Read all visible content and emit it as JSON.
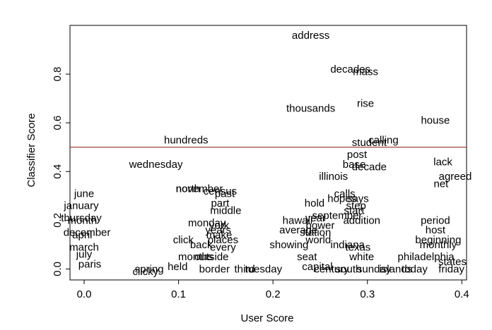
{
  "chart_data": {
    "type": "scatter",
    "title": "",
    "xlabel": "User Score",
    "ylabel": "Classifier Score",
    "xlim": [
      -0.015,
      0.405
    ],
    "ylim": [
      -0.045,
      1.0
    ],
    "xticks": [
      0.0,
      0.1,
      0.2,
      0.3,
      0.4
    ],
    "xtick_labels": [
      "0.0",
      "0.1",
      "0.2",
      "0.3",
      "0.4"
    ],
    "yticks": [
      0.0,
      0.2,
      0.4,
      0.6,
      0.8
    ],
    "ytick_labels": [
      "0.0",
      "0.2",
      "0.4",
      "0.6",
      "0.8"
    ],
    "grid": false,
    "threshold": {
      "y": 0.5,
      "color": "#a0413a"
    },
    "points": [
      {
        "label": "address",
        "x": 0.24,
        "y": 0.96
      },
      {
        "label": "decades",
        "x": 0.282,
        "y": 0.82
      },
      {
        "label": "mass",
        "x": 0.298,
        "y": 0.81
      },
      {
        "label": "rise",
        "x": 0.298,
        "y": 0.68
      },
      {
        "label": "thousands",
        "x": 0.24,
        "y": 0.66
      },
      {
        "label": "house",
        "x": 0.372,
        "y": 0.61
      },
      {
        "label": "hundreds",
        "x": 0.108,
        "y": 0.53
      },
      {
        "label": "calling",
        "x": 0.317,
        "y": 0.53
      },
      {
        "label": "student",
        "x": 0.302,
        "y": 0.52
      },
      {
        "label": "post",
        "x": 0.289,
        "y": 0.47
      },
      {
        "label": "base",
        "x": 0.286,
        "y": 0.43
      },
      {
        "label": "decade",
        "x": 0.302,
        "y": 0.42
      },
      {
        "label": "wednesday",
        "x": 0.076,
        "y": 0.43
      },
      {
        "label": "lack",
        "x": 0.38,
        "y": 0.44
      },
      {
        "label": "agreed",
        "x": 0.393,
        "y": 0.38
      },
      {
        "label": "net",
        "x": 0.378,
        "y": 0.35
      },
      {
        "label": "illinois",
        "x": 0.264,
        "y": 0.38
      },
      {
        "label": "november",
        "x": 0.122,
        "y": 0.33
      },
      {
        "label": "north",
        "x": 0.11,
        "y": 0.33
      },
      {
        "label": "census",
        "x": 0.144,
        "y": 0.32
      },
      {
        "label": "past",
        "x": 0.149,
        "y": 0.31
      },
      {
        "label": "june",
        "x": 0.0,
        "y": 0.31
      },
      {
        "label": "calls",
        "x": 0.276,
        "y": 0.31
      },
      {
        "label": "hopes",
        "x": 0.273,
        "y": 0.29
      },
      {
        "label": "says",
        "x": 0.29,
        "y": 0.29
      },
      {
        "label": "part",
        "x": 0.144,
        "y": 0.27
      },
      {
        "label": "hold",
        "x": 0.244,
        "y": 0.27
      },
      {
        "label": "january",
        "x": -0.003,
        "y": 0.26
      },
      {
        "label": "step",
        "x": 0.288,
        "y": 0.26
      },
      {
        "label": "middle",
        "x": 0.15,
        "y": 0.24
      },
      {
        "label": "start",
        "x": 0.286,
        "y": 0.24
      },
      {
        "label": "september",
        "x": 0.268,
        "y": 0.22
      },
      {
        "label": "year",
        "x": 0.245,
        "y": 0.21
      },
      {
        "label": "hawaii",
        "x": 0.226,
        "y": 0.2
      },
      {
        "label": "thursday",
        "x": -0.003,
        "y": 0.21
      },
      {
        "label": "addition",
        "x": 0.294,
        "y": 0.2
      },
      {
        "label": "month",
        "x": -0.002,
        "y": 0.2
      },
      {
        "label": "period",
        "x": 0.372,
        "y": 0.2
      },
      {
        "label": "monday",
        "x": 0.13,
        "y": 0.19
      },
      {
        "label": "york",
        "x": 0.143,
        "y": 0.18
      },
      {
        "label": "power",
        "x": 0.25,
        "y": 0.18
      },
      {
        "label": "years",
        "x": 0.142,
        "y": 0.16
      },
      {
        "label": "average",
        "x": 0.227,
        "y": 0.16
      },
      {
        "label": "host",
        "x": 0.372,
        "y": 0.16
      },
      {
        "label": "december",
        "x": 0.003,
        "y": 0.15
      },
      {
        "label": "make",
        "x": 0.143,
        "y": 0.14
      },
      {
        "label": "station",
        "x": 0.245,
        "y": 0.15
      },
      {
        "label": "april",
        "x": -0.002,
        "y": 0.14
      },
      {
        "label": "places",
        "x": 0.147,
        "y": 0.12
      },
      {
        "label": "click",
        "x": 0.105,
        "y": 0.12
      },
      {
        "label": "world",
        "x": 0.248,
        "y": 0.12
      },
      {
        "label": "beginning",
        "x": 0.375,
        "y": 0.12
      },
      {
        "label": "showing",
        "x": 0.217,
        "y": 0.1
      },
      {
        "label": "back",
        "x": 0.124,
        "y": 0.1
      },
      {
        "label": "every",
        "x": 0.147,
        "y": 0.09
      },
      {
        "label": "march",
        "x": 0.0,
        "y": 0.09
      },
      {
        "label": "indiana",
        "x": 0.279,
        "y": 0.1
      },
      {
        "label": "texas",
        "x": 0.29,
        "y": 0.09
      },
      {
        "label": "monthly",
        "x": 0.375,
        "y": 0.1
      },
      {
        "label": "months",
        "x": 0.118,
        "y": 0.05
      },
      {
        "label": "outside",
        "x": 0.135,
        "y": 0.05
      },
      {
        "label": "seat",
        "x": 0.236,
        "y": 0.05
      },
      {
        "label": "white",
        "x": 0.294,
        "y": 0.05
      },
      {
        "label": "philadelphia",
        "x": 0.362,
        "y": 0.05
      },
      {
        "label": "states",
        "x": 0.39,
        "y": 0.03
      },
      {
        "label": "july",
        "x": 0.0,
        "y": 0.06
      },
      {
        "label": "paris",
        "x": 0.006,
        "y": 0.02
      },
      {
        "label": "spring",
        "x": 0.069,
        "y": 0.0
      },
      {
        "label": "clicky",
        "x": 0.065,
        "y": -0.01
      },
      {
        "label": "held",
        "x": 0.099,
        "y": 0.01
      },
      {
        "label": "border",
        "x": 0.138,
        "y": 0.0
      },
      {
        "label": "third",
        "x": 0.17,
        "y": 0.0
      },
      {
        "label": "tuesday",
        "x": 0.19,
        "y": 0.0
      },
      {
        "label": "capital",
        "x": 0.247,
        "y": 0.01
      },
      {
        "label": "century",
        "x": 0.262,
        "y": 0.0
      },
      {
        "label": "south",
        "x": 0.28,
        "y": 0.0
      },
      {
        "label": "sunday",
        "x": 0.307,
        "y": 0.0
      },
      {
        "label": "islands",
        "x": 0.33,
        "y": 0.0
      },
      {
        "label": "today",
        "x": 0.35,
        "y": 0.0
      },
      {
        "label": "friday",
        "x": 0.389,
        "y": 0.0
      }
    ]
  }
}
